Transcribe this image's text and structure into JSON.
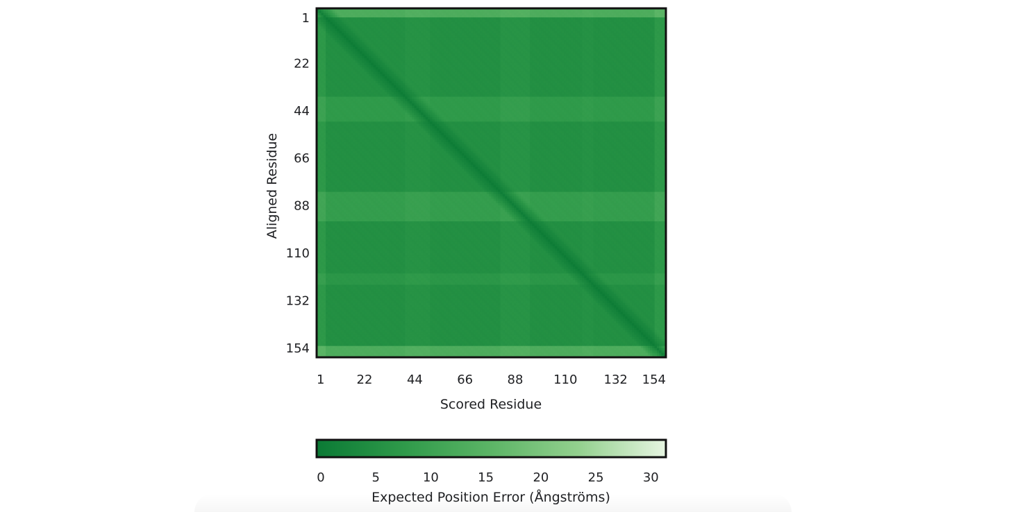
{
  "chart_data": {
    "type": "heatmap",
    "title": "",
    "xlabel": "Scored Residue",
    "ylabel": "Aligned Residue",
    "n_residues": 154,
    "x_ticks": [
      1,
      22,
      44,
      66,
      88,
      110,
      132,
      154
    ],
    "y_ticks": [
      1,
      22,
      44,
      66,
      88,
      110,
      132,
      154
    ],
    "colorbar": {
      "label": "Expected Position Error (Ångströms)",
      "ticks": [
        0,
        5,
        10,
        15,
        20,
        25,
        30
      ],
      "range": [
        0,
        31.75
      ],
      "colors": [
        "#0b7a35",
        "#2f9a4a",
        "#5cb566",
        "#93d08e",
        "#e6f5e1"
      ]
    },
    "error_profile": {
      "diagonal_value": 0,
      "baseline_value": 5,
      "elevated_regions": [
        {
          "residues": [
            1,
            4
          ],
          "value": 14
        },
        {
          "residues": [
            40,
            50
          ],
          "value": 8
        },
        {
          "residues": [
            82,
            94
          ],
          "value": 9
        },
        {
          "residues": [
            118,
            122
          ],
          "value": 7
        },
        {
          "residues": [
            150,
            154
          ],
          "value": 14
        }
      ]
    }
  }
}
